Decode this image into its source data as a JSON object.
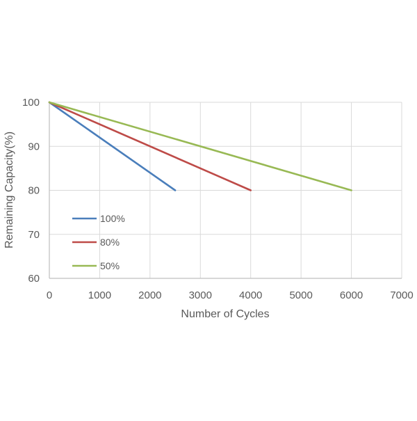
{
  "chart_data": {
    "type": "line",
    "title": "",
    "xlabel": "Number of Cycles",
    "ylabel": "Remaining Capacity(%)",
    "xlim": [
      0,
      7000
    ],
    "ylim": [
      60,
      100
    ],
    "x_ticks": [
      0,
      1000,
      2000,
      3000,
      4000,
      5000,
      6000,
      7000
    ],
    "y_ticks": [
      60,
      70,
      80,
      90,
      100
    ],
    "grid": true,
    "legend_position": "left-inside",
    "series": [
      {
        "name": "100%",
        "color": "#4A7EBB",
        "x": [
          0,
          2500
        ],
        "y": [
          100,
          80
        ]
      },
      {
        "name": "80%",
        "color": "#BE4B48",
        "x": [
          0,
          4000
        ],
        "y": [
          100,
          80
        ]
      },
      {
        "name": "50%",
        "color": "#98B954",
        "x": [
          0,
          6000
        ],
        "y": [
          100,
          80
        ]
      }
    ]
  },
  "style": {
    "grid_color": "#D9D9D9",
    "axis_color": "#BFBFBF",
    "text_color": "#595959"
  }
}
